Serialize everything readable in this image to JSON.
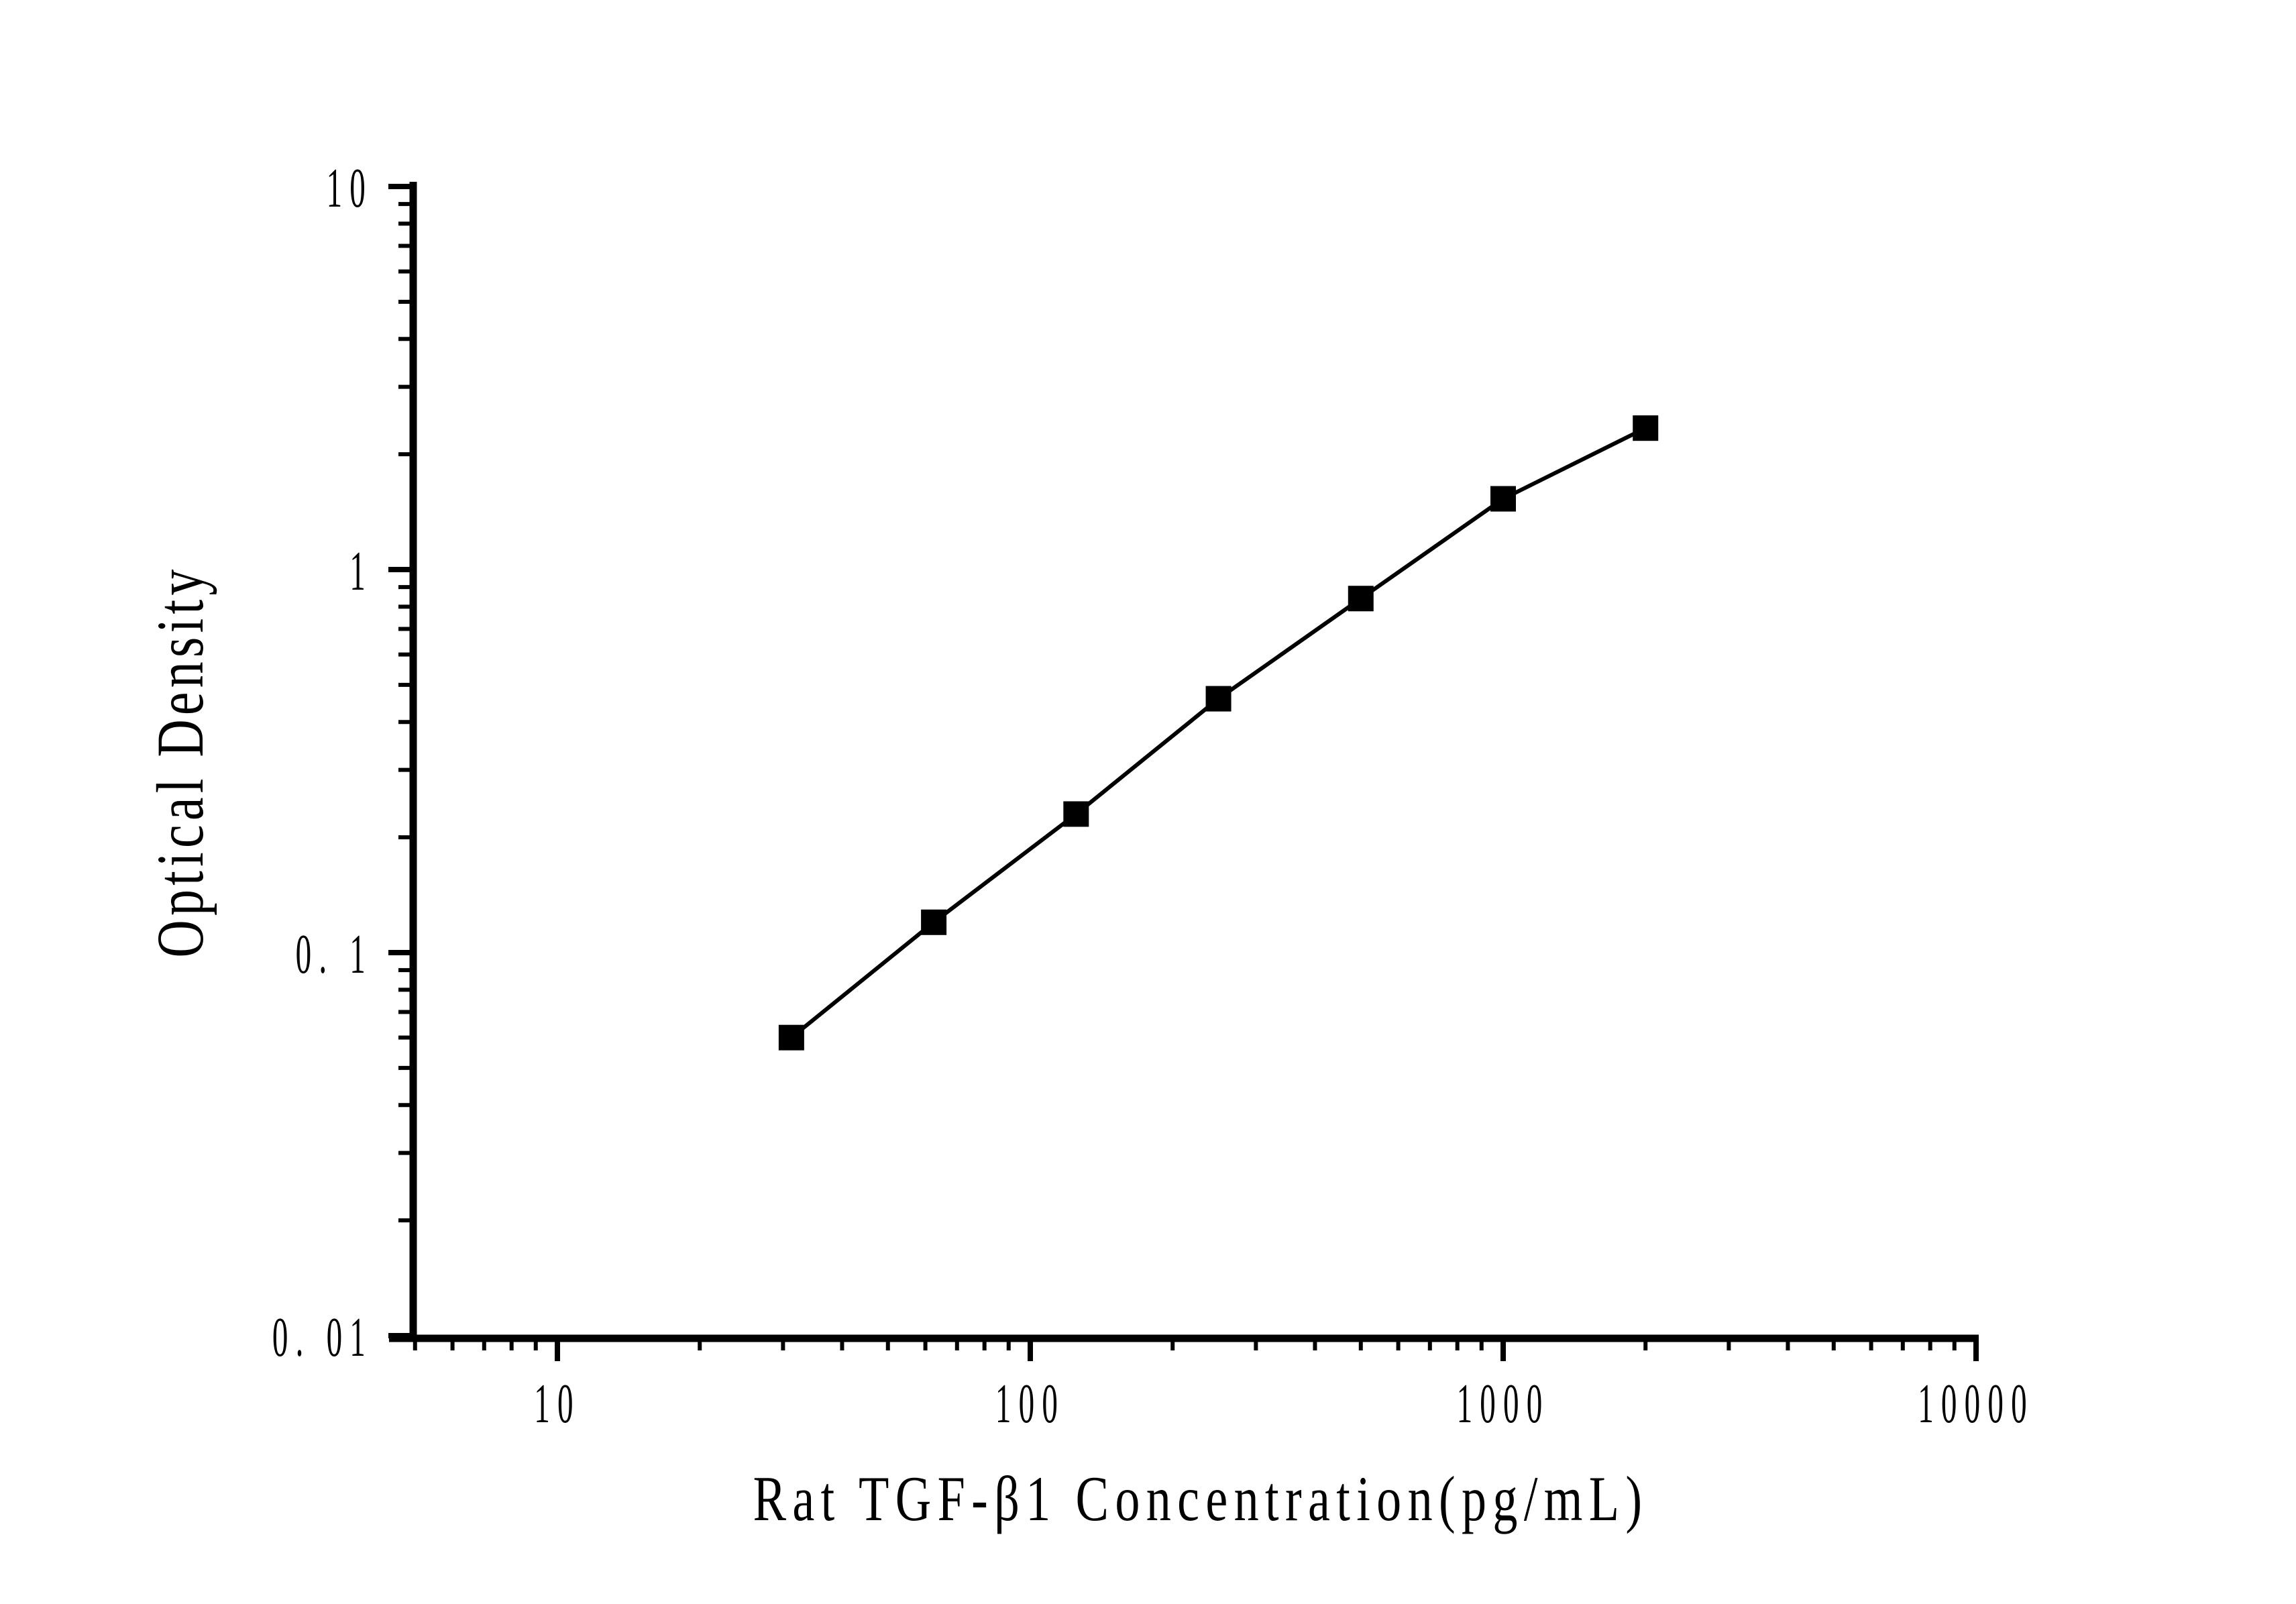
{
  "page": {
    "background": "#ffffff",
    "ink_color": "#000000"
  },
  "chart_data": {
    "type": "line",
    "title": "",
    "xlabel": "Rat TGF-β1 Concentration(pg/mL)",
    "ylabel": "Optical Density",
    "x_scale": "log",
    "y_scale": "log",
    "xlim": [
      5,
      10500
    ],
    "ylim": [
      0.01,
      10
    ],
    "grid": false,
    "legend_position": "none",
    "frame": "axes-only-left-bottom",
    "x_ticks": {
      "major": [
        10,
        100,
        1000,
        10000
      ],
      "major_labels": [
        "10",
        "100",
        "1000",
        "10000"
      ],
      "minor": [
        5,
        6,
        7,
        8,
        9,
        20,
        30,
        40,
        50,
        60,
        70,
        80,
        90,
        200,
        300,
        400,
        500,
        600,
        700,
        800,
        900,
        2000,
        3000,
        4000,
        5000,
        6000,
        7000,
        8000,
        9000
      ]
    },
    "y_ticks": {
      "major": [
        10,
        1,
        0.1,
        0.01
      ],
      "major_labels": [
        "10",
        "1",
        "0. 1",
        "0. 01"
      ],
      "minor": [
        0.02,
        0.03,
        0.04,
        0.05,
        0.06,
        0.07,
        0.08,
        0.09,
        0.2,
        0.3,
        0.4,
        0.5,
        0.6,
        0.7,
        0.8,
        0.9,
        2,
        3,
        4,
        5,
        6,
        7,
        8,
        9
      ]
    },
    "series": [
      {
        "name": "standard-curve",
        "marker": "filled-square",
        "line_style": "solid",
        "color": "#000000",
        "x": [
          31.25,
          62.5,
          125,
          250,
          500,
          1000,
          2000
        ],
        "y": [
          0.06,
          0.12,
          0.23,
          0.46,
          0.84,
          1.53,
          2.34
        ]
      }
    ]
  }
}
